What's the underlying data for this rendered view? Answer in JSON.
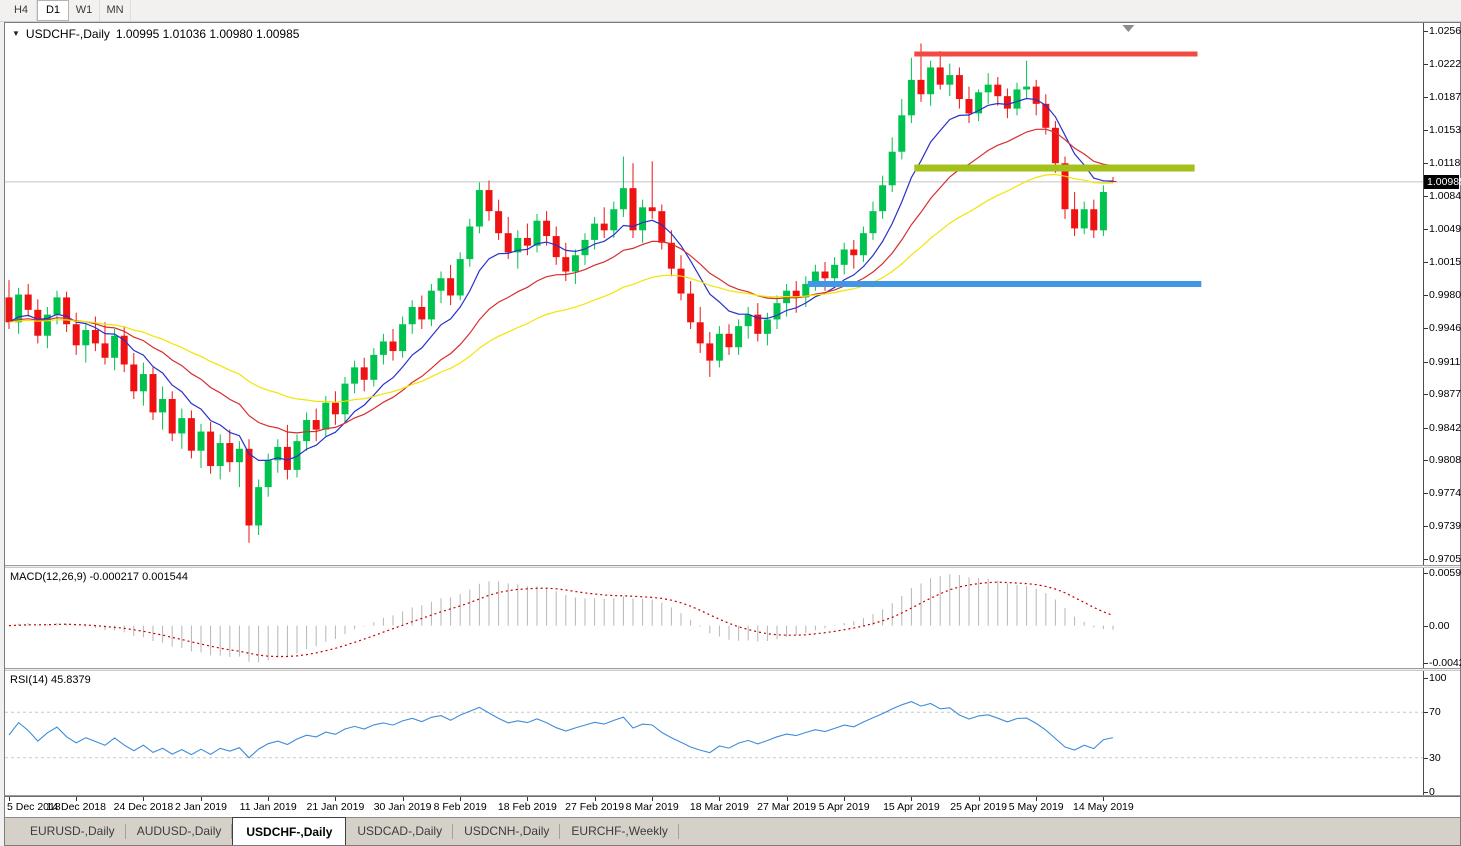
{
  "toolbar": {
    "timeframes": [
      "H4",
      "D1",
      "W1",
      "MN"
    ],
    "active": "D1"
  },
  "chart": {
    "title_symbol": "USDCHF-,Daily",
    "title_ohlc": "1.00995 1.01036 1.00980 1.00985",
    "current_price": "1.00985",
    "current_price_value": 1.00985
  },
  "price_axis": {
    "max": 1.0256,
    "min": 0.9705,
    "ticks": [
      "1.02560",
      "1.02220",
      "1.01870",
      "1.01530",
      "1.01180",
      "1.00840",
      "1.00490",
      "1.00150",
      "0.99800",
      "0.99460",
      "0.99110",
      "0.98770",
      "0.98420",
      "0.98080",
      "0.97740",
      "0.97390",
      "0.97050"
    ]
  },
  "macd": {
    "label": "MACD(12,26,9) -0.000217 0.001544",
    "value_main": "-0.000217",
    "value_signal": "0.001544",
    "params": {
      "fast": 12,
      "slow": 26,
      "signal": 9
    },
    "max": 0.00597,
    "min": -0.00424,
    "ticks": [
      "0.00597",
      "0.00",
      "-0.00424"
    ],
    "bar_color": "#b5b5b5",
    "signal_color": "#c40000"
  },
  "rsi": {
    "label": "RSI(14) 45.8379",
    "period": 14,
    "value": "45.8379",
    "ticks": [
      {
        "v": 100,
        "label": "100",
        "dashed": false
      },
      {
        "v": 70,
        "label": "70",
        "dashed": true
      },
      {
        "v": 30,
        "label": "30",
        "dashed": true
      },
      {
        "v": 0,
        "label": "0",
        "dashed": false
      }
    ],
    "line_color": "#3f8cdb",
    "level_color": "#c9c9c9"
  },
  "date_axis": {
    "tick_indices": [
      0,
      7,
      14,
      20,
      27,
      34,
      41,
      47,
      54,
      61,
      67,
      74,
      81,
      87,
      94,
      101,
      107,
      114
    ],
    "labels": [
      "5 Dec 2018",
      "14 Dec 2018",
      "24 Dec 2018",
      "2 Jan 2019",
      "11 Jan 2019",
      "21 Jan 2019",
      "30 Jan 2019",
      "8 Feb 2019",
      "18 Feb 2019",
      "27 Feb 2019",
      "8 Mar 2019",
      "18 Mar 2019",
      "27 Mar 2019",
      "5 Apr 2019",
      "15 Apr 2019",
      "25 Apr 2019",
      "5 May 2019",
      "14 May 2019"
    ]
  },
  "levels": [
    {
      "name": "resistance-line",
      "price": 1.0232,
      "from": 94.3,
      "to": 123.8,
      "thickness": 5,
      "color": "#f24a43"
    },
    {
      "name": "broken-support-line",
      "price": 1.0113,
      "from": 94.3,
      "to": 123.5,
      "thickness": 7,
      "color": "#a3c11a"
    },
    {
      "name": "support-line",
      "price": 0.9992,
      "from": 83.2,
      "to": 124.2,
      "thickness": 6,
      "color": "#3f97e6"
    }
  ],
  "shift_marker_index": 116.6,
  "tabs": {
    "items": [
      "EURUSD-,Daily",
      "AUDUSD-,Daily",
      "USDCHF-,Daily",
      "USDCAD-,Daily",
      "USDCNH-,Daily",
      "EURCHF-,Weekly"
    ],
    "active": "USDCHF-,Daily"
  },
  "chart_data": {
    "type": "candlestick",
    "symbol": "USDCHF-",
    "timeframe": "Daily",
    "bull_color": "#00c24e",
    "bear_color": "#ee1212",
    "price_line_color": "#c4c4c4",
    "moving_averages": [
      {
        "name": "fast-ma",
        "method": "ema",
        "period": 9,
        "color": "#2831c8"
      },
      {
        "name": "mid-ma",
        "method": "ema",
        "period": 20,
        "color": "#d62e2e"
      },
      {
        "name": "slow-ma",
        "method": "ema",
        "period": 40,
        "color": "#f2e400"
      }
    ],
    "ylim": [
      0.9705,
      1.0256
    ],
    "ohlc": [
      [
        0.9978,
        0.9996,
        0.9945,
        0.9952
      ],
      [
        0.9952,
        0.9988,
        0.994,
        0.9981
      ],
      [
        0.9981,
        0.9992,
        0.9958,
        0.9965
      ],
      [
        0.9965,
        0.9976,
        0.993,
        0.9938
      ],
      [
        0.9938,
        0.9968,
        0.9925,
        0.996
      ],
      [
        0.996,
        0.9985,
        0.995,
        0.9978
      ],
      [
        0.9978,
        0.9984,
        0.9942,
        0.995
      ],
      [
        0.995,
        0.9962,
        0.9918,
        0.9928
      ],
      [
        0.9928,
        0.995,
        0.991,
        0.9944
      ],
      [
        0.9944,
        0.9958,
        0.9922,
        0.993
      ],
      [
        0.993,
        0.9952,
        0.9908,
        0.9915
      ],
      [
        0.9915,
        0.9945,
        0.9902,
        0.9938
      ],
      [
        0.9938,
        0.9948,
        0.99,
        0.9908
      ],
      [
        0.9908,
        0.992,
        0.9872,
        0.988
      ],
      [
        0.988,
        0.991,
        0.9865,
        0.9898
      ],
      [
        0.9898,
        0.9905,
        0.985,
        0.9858
      ],
      [
        0.9858,
        0.9885,
        0.984,
        0.9872
      ],
      [
        0.9872,
        0.988,
        0.9828,
        0.9836
      ],
      [
        0.9836,
        0.9862,
        0.982,
        0.9852
      ],
      [
        0.9852,
        0.986,
        0.981,
        0.9818
      ],
      [
        0.9818,
        0.9846,
        0.98,
        0.9838
      ],
      [
        0.9838,
        0.9848,
        0.9794,
        0.9802
      ],
      [
        0.9802,
        0.9835,
        0.9788,
        0.9826
      ],
      [
        0.9826,
        0.984,
        0.9796,
        0.9806
      ],
      [
        0.9806,
        0.9828,
        0.978,
        0.982
      ],
      [
        0.982,
        0.983,
        0.9722,
        0.974
      ],
      [
        0.974,
        0.9788,
        0.973,
        0.978
      ],
      [
        0.978,
        0.9815,
        0.977,
        0.9808
      ],
      [
        0.9808,
        0.983,
        0.9795,
        0.9822
      ],
      [
        0.9822,
        0.9845,
        0.9788,
        0.9798
      ],
      [
        0.9798,
        0.9835,
        0.979,
        0.9828
      ],
      [
        0.9828,
        0.9858,
        0.9818,
        0.985
      ],
      [
        0.985,
        0.9862,
        0.9828,
        0.984
      ],
      [
        0.984,
        0.9875,
        0.9832,
        0.9868
      ],
      [
        0.9868,
        0.988,
        0.9845,
        0.9856
      ],
      [
        0.9856,
        0.9895,
        0.9848,
        0.9888
      ],
      [
        0.9888,
        0.9912,
        0.9878,
        0.9905
      ],
      [
        0.9905,
        0.9915,
        0.988,
        0.9892
      ],
      [
        0.9892,
        0.9925,
        0.9885,
        0.9918
      ],
      [
        0.9918,
        0.994,
        0.9908,
        0.9932
      ],
      [
        0.9932,
        0.9945,
        0.9912,
        0.9922
      ],
      [
        0.9922,
        0.9958,
        0.9915,
        0.995
      ],
      [
        0.995,
        0.9975,
        0.994,
        0.9968
      ],
      [
        0.9968,
        0.998,
        0.9945,
        0.9955
      ],
      [
        0.9955,
        0.9992,
        0.9948,
        0.9985
      ],
      [
        0.9985,
        1.0005,
        0.9972,
        0.9998
      ],
      [
        0.9998,
        1.0012,
        0.997,
        0.998
      ],
      [
        0.998,
        1.0025,
        0.9975,
        1.0018
      ],
      [
        1.0018,
        1.006,
        1.001,
        1.0052
      ],
      [
        1.0052,
        1.0098,
        1.0045,
        1.009
      ],
      [
        1.009,
        1.01,
        1.0058,
        1.0068
      ],
      [
        1.0068,
        1.008,
        1.0038,
        1.0045
      ],
      [
        1.0045,
        1.0062,
        1.0018,
        1.0025
      ],
      [
        1.0025,
        1.0048,
        1.0008,
        1.004
      ],
      [
        1.004,
        1.0055,
        1.0022,
        1.0032
      ],
      [
        1.0032,
        1.0065,
        1.0025,
        1.0058
      ],
      [
        1.0058,
        1.0068,
        1.0032,
        1.0042
      ],
      [
        1.0042,
        1.0052,
        1.0012,
        1.002
      ],
      [
        1.002,
        1.0035,
        0.9995,
        1.0005
      ],
      [
        1.0005,
        1.0028,
        0.9992,
        1.0022
      ],
      [
        1.0022,
        1.0045,
        1.0012,
        1.0038
      ],
      [
        1.0038,
        1.0062,
        1.0028,
        1.0055
      ],
      [
        1.0055,
        1.0072,
        1.004,
        1.0048
      ],
      [
        1.0048,
        1.0078,
        1.004,
        1.007
      ],
      [
        1.007,
        1.0125,
        1.0062,
        1.0092
      ],
      [
        1.0092,
        1.0118,
        1.004,
        1.0048
      ],
      [
        1.0048,
        1.008,
        1.0035,
        1.0072
      ],
      [
        1.0072,
        1.012,
        1.006,
        1.0068
      ],
      [
        1.0068,
        1.0075,
        1.0028,
        1.0035
      ],
      [
        1.0035,
        1.0048,
        1.0,
        1.0008
      ],
      [
        1.0008,
        1.0022,
        0.9975,
        0.9982
      ],
      [
        0.9982,
        0.9995,
        0.9945,
        0.9952
      ],
      [
        0.9952,
        0.9968,
        0.992,
        0.993
      ],
      [
        0.993,
        0.9942,
        0.9895,
        0.9912
      ],
      [
        0.9912,
        0.9948,
        0.9905,
        0.994
      ],
      [
        0.994,
        0.995,
        0.9918,
        0.9926
      ],
      [
        0.9926,
        0.9955,
        0.9918,
        0.9948
      ],
      [
        0.9948,
        0.9968,
        0.9935,
        0.996
      ],
      [
        0.996,
        0.9972,
        0.9932,
        0.994
      ],
      [
        0.994,
        0.9962,
        0.9928,
        0.9955
      ],
      [
        0.9955,
        0.998,
        0.9945,
        0.9972
      ],
      [
        0.9972,
        0.9992,
        0.9958,
        0.9985
      ],
      [
        0.9985,
        0.9995,
        0.9962,
        0.9978
      ],
      [
        0.9978,
        1.0,
        0.9968,
        0.9992
      ],
      [
        0.9992,
        1.0012,
        0.9985,
        1.0005
      ],
      [
        1.0005,
        1.0015,
        0.9985,
        0.9998
      ],
      [
        0.9998,
        1.002,
        0.999,
        1.0012
      ],
      [
        1.0012,
        1.0035,
        1.0002,
        1.0028
      ],
      [
        1.0028,
        1.0038,
        1.0008,
        1.0022
      ],
      [
        1.0022,
        1.0052,
        1.0015,
        1.0045
      ],
      [
        1.0045,
        1.0078,
        1.0038,
        1.0068
      ],
      [
        1.0068,
        1.0105,
        1.006,
        1.0095
      ],
      [
        1.0095,
        1.0145,
        1.0088,
        1.013
      ],
      [
        1.013,
        1.0185,
        1.0122,
        1.0168
      ],
      [
        1.0168,
        1.0228,
        1.016,
        1.0205
      ],
      [
        1.0205,
        1.0243,
        1.0182,
        1.019
      ],
      [
        1.019,
        1.0225,
        1.0178,
        1.0218
      ],
      [
        1.0218,
        1.0235,
        1.0195,
        1.02
      ],
      [
        1.02,
        1.0222,
        1.0188,
        1.021
      ],
      [
        1.021,
        1.0218,
        1.0175,
        1.0185
      ],
      [
        1.0185,
        1.0198,
        1.016,
        1.017
      ],
      [
        1.017,
        1.0195,
        1.0162,
        1.0192
      ],
      [
        1.0192,
        1.0212,
        1.018,
        1.02
      ],
      [
        1.02,
        1.0208,
        1.0178,
        1.0188
      ],
      [
        1.0188,
        1.0196,
        1.0165,
        1.0175
      ],
      [
        1.0175,
        1.0202,
        1.0168,
        1.0195
      ],
      [
        1.0195,
        1.0225,
        1.0185,
        1.0198
      ],
      [
        1.0198,
        1.0205,
        1.0168,
        1.018
      ],
      [
        1.018,
        1.019,
        1.0148,
        1.0155
      ],
      [
        1.0155,
        1.0162,
        1.0108,
        1.0118
      ],
      [
        1.0118,
        1.0125,
        1.006,
        1.007
      ],
      [
        1.007,
        1.0088,
        1.0042,
        1.005
      ],
      [
        1.005,
        1.0078,
        1.0044,
        1.007
      ],
      [
        1.007,
        1.008,
        1.004,
        1.0048
      ],
      [
        1.0048,
        1.0095,
        1.0042,
        1.0088
      ],
      [
        1.00995,
        1.01036,
        1.0098,
        1.00985
      ]
    ]
  }
}
